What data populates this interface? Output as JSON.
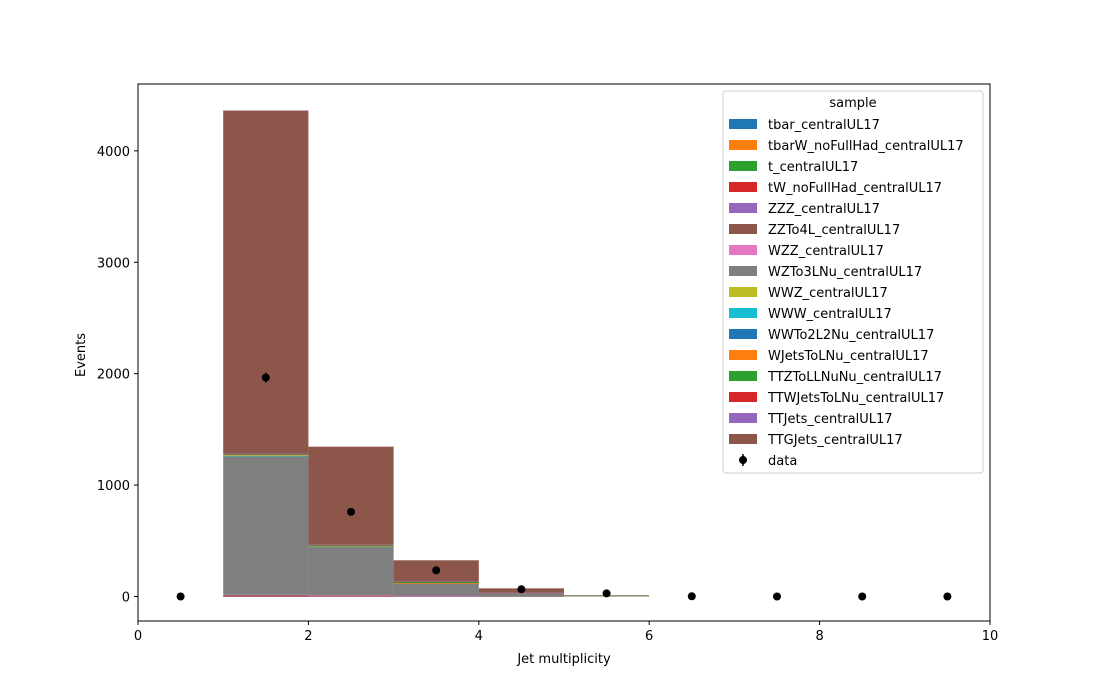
{
  "chart_data": {
    "type": "bar",
    "subtype": "stacked-histogram",
    "xlabel": "Jet multiplicity",
    "ylabel": "Events",
    "xlim": [
      0,
      10
    ],
    "ylim": [
      -220,
      4600
    ],
    "xticks": [
      0,
      2,
      4,
      6,
      8,
      10
    ],
    "yticks": [
      0,
      1000,
      2000,
      3000,
      4000
    ],
    "grid": false,
    "legend": {
      "title": "sample",
      "placement": "upper right"
    },
    "bin_edges": [
      0,
      1,
      2,
      3,
      4,
      5,
      6,
      7,
      8,
      9,
      10
    ],
    "series": [
      {
        "name": "tbar_centralUL17",
        "color": "#1f77b4",
        "values": [
          0,
          0,
          0,
          0,
          0,
          0,
          0,
          0,
          0,
          0
        ]
      },
      {
        "name": "tbarW_noFullHad_centralUL17",
        "color": "#ff7f0e",
        "values": [
          0,
          1,
          1,
          0,
          0,
          0,
          0,
          0,
          0,
          0
        ]
      },
      {
        "name": "t_centralUL17",
        "color": "#2ca02c",
        "values": [
          0,
          0,
          0,
          0,
          0,
          0,
          0,
          0,
          0,
          0
        ]
      },
      {
        "name": "tW_noFullHad_centralUL17",
        "color": "#d62728",
        "values": [
          0,
          1,
          1,
          0,
          0,
          0,
          0,
          0,
          0,
          0
        ]
      },
      {
        "name": "ZZZ_centralUL17",
        "color": "#9467bd",
        "values": [
          0,
          2,
          1,
          1,
          0,
          0,
          0,
          0,
          0,
          0
        ]
      },
      {
        "name": "ZZTo4L_centralUL17",
        "color": "#8c564b",
        "values": [
          0,
          10,
          5,
          2,
          1,
          0,
          0,
          0,
          0,
          0
        ]
      },
      {
        "name": "WZZ_centralUL17",
        "color": "#e377c2",
        "values": [
          0,
          2,
          1,
          1,
          0,
          0,
          0,
          0,
          0,
          0
        ]
      },
      {
        "name": "WZTo3LNu_centralUL17",
        "color": "#7f7f7f",
        "values": [
          0,
          1240,
          435,
          115,
          25,
          5,
          0,
          0,
          0,
          0
        ]
      },
      {
        "name": "WWZ_centralUL17",
        "color": "#bcbd22",
        "values": [
          0,
          3,
          2,
          1,
          0,
          0,
          0,
          0,
          0,
          0
        ]
      },
      {
        "name": "WWW_centralUL17",
        "color": "#17becf",
        "values": [
          0,
          1,
          1,
          0,
          0,
          0,
          0,
          0,
          0,
          0
        ]
      },
      {
        "name": "WWTo2L2Nu_centralUL17",
        "color": "#1f77b4",
        "values": [
          0,
          3,
          1,
          0,
          0,
          0,
          0,
          0,
          0,
          0
        ]
      },
      {
        "name": "WJetsToLNu_centralUL17",
        "color": "#ff7f0e",
        "values": [
          0,
          5,
          3,
          1,
          0,
          0,
          0,
          0,
          0,
          0
        ]
      },
      {
        "name": "TTZToLLNuNu_centralUL17",
        "color": "#2ca02c",
        "values": [
          0,
          10,
          10,
          10,
          5,
          2,
          0,
          0,
          0,
          0
        ]
      },
      {
        "name": "TTWJetsToLNu_centralUL17",
        "color": "#d62728",
        "values": [
          0,
          2,
          2,
          2,
          1,
          0,
          0,
          0,
          0,
          0
        ]
      },
      {
        "name": "TTJets_centralUL17",
        "color": "#9467bd",
        "values": [
          0,
          2,
          2,
          2,
          1,
          0,
          0,
          0,
          0,
          0
        ]
      },
      {
        "name": "TTGJets_centralUL17",
        "color": "#8c564b",
        "values": [
          0,
          3080,
          880,
          190,
          40,
          5,
          0,
          0,
          0,
          0
        ]
      }
    ],
    "data": {
      "name": "data",
      "color": "#000000",
      "x": [
        0.5,
        1.5,
        2.5,
        3.5,
        4.5,
        5.5,
        6.5,
        7.5,
        8.5,
        9.5
      ],
      "y": [
        0,
        1965,
        760,
        235,
        65,
        28,
        2,
        0,
        0,
        0
      ],
      "yerr": [
        0,
        44,
        28,
        15,
        8,
        5,
        1,
        0,
        0,
        0
      ]
    }
  }
}
